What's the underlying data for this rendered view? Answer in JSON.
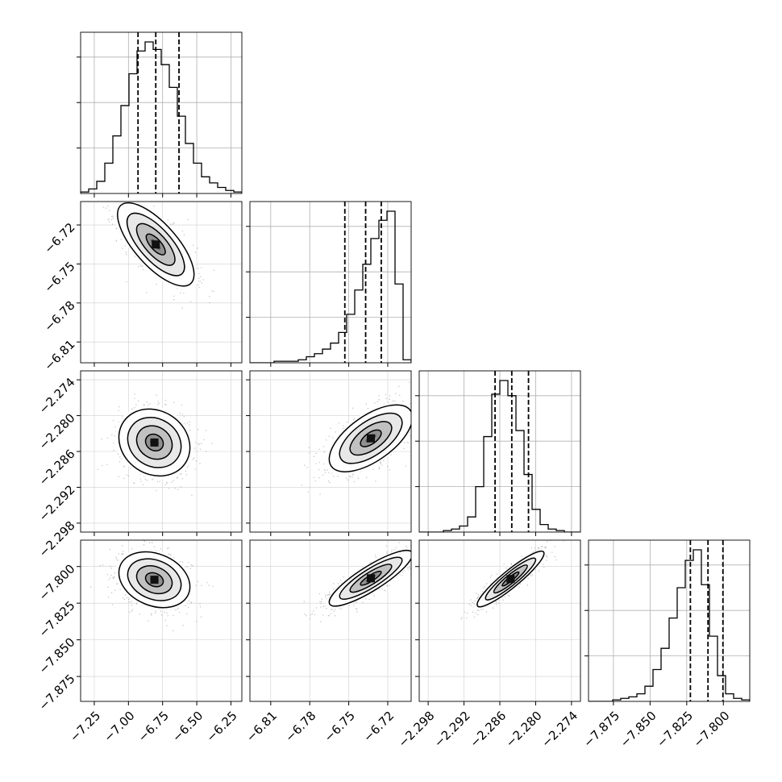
{
  "chart_data": {
    "type": "corner",
    "title": "",
    "parameters": [
      {
        "name": "",
        "axis_range": [
          -7.35,
          -6.17
        ],
        "x_ticks": [
          "-7.25",
          "-7.00",
          "-6.75",
          "-6.50",
          "-6.25"
        ],
        "quantiles": [
          -6.93,
          -6.8,
          -6.63
        ],
        "histogram": [
          0.01,
          0.03,
          0.08,
          0.2,
          0.38,
          0.58,
          0.79,
          0.94,
          1.0,
          0.95,
          0.85,
          0.7,
          0.51,
          0.33,
          0.2,
          0.11,
          0.07,
          0.04,
          0.02,
          0.01
        ]
      },
      {
        "name": "",
        "axis_range": [
          -6.826,
          -6.702
        ],
        "x_ticks": [
          "-6.81",
          "-6.78",
          "-6.75",
          "-6.72"
        ],
        "y_ticks": [
          "-6.72",
          "-6.75",
          "-6.78",
          "-6.81"
        ],
        "quantiles": [
          -6.753,
          -6.737,
          -6.725
        ],
        "histogram": [
          0.0,
          0.0,
          0.0,
          0.01,
          0.01,
          0.01,
          0.02,
          0.04,
          0.06,
          0.09,
          0.13,
          0.2,
          0.32,
          0.48,
          0.65,
          0.82,
          0.94,
          1.0,
          0.52,
          0.02
        ]
      },
      {
        "name": "",
        "axis_range": [
          -2.2995,
          -2.2725
        ],
        "x_ticks": [
          "-2.298",
          "-2.292",
          "-2.286",
          "-2.280",
          "-2.274"
        ],
        "y_ticks": [
          "-2.274",
          "-2.280",
          "-2.286",
          "-2.292",
          "-2.298"
        ],
        "quantiles": [
          -2.2868,
          -2.284,
          -2.2812
        ],
        "histogram": [
          0.0,
          0.0,
          0.0,
          0.01,
          0.02,
          0.04,
          0.1,
          0.3,
          0.63,
          0.91,
          1.0,
          0.9,
          0.67,
          0.38,
          0.15,
          0.05,
          0.02,
          0.01,
          0.0,
          0.0
        ]
      },
      {
        "name": "",
        "axis_range": [
          -7.892,
          -7.782
        ],
        "x_ticks": [
          "-7.875",
          "-7.850",
          "-7.825",
          "-7.800"
        ],
        "y_ticks": [
          "-7.800",
          "-7.825",
          "-7.850",
          "-7.875"
        ],
        "quantiles": [
          -7.8225,
          -7.8105,
          -7.8003
        ],
        "histogram": [
          0.0,
          0.0,
          0.0,
          0.01,
          0.02,
          0.03,
          0.05,
          0.1,
          0.21,
          0.35,
          0.55,
          0.75,
          0.93,
          1.0,
          0.77,
          0.43,
          0.17,
          0.05,
          0.02,
          0.01
        ]
      }
    ],
    "pairs": [
      {
        "row": 1,
        "col": 0,
        "mean": [
          -6.8,
          -6.735
        ],
        "std": [
          0.14,
          0.016
        ],
        "corr": -0.72
      },
      {
        "row": 2,
        "col": 0,
        "mean": [
          -6.81,
          -2.2845
        ],
        "std": [
          0.13,
          0.0028
        ],
        "corr": -0.15
      },
      {
        "row": 2,
        "col": 1,
        "mean": [
          -6.733,
          -2.2838
        ],
        "std": [
          0.016,
          0.0028
        ],
        "corr": 0.62
      },
      {
        "row": 3,
        "col": 0,
        "mean": [
          -6.81,
          -7.809
        ],
        "std": [
          0.13,
          0.0095
        ],
        "corr": -0.25
      },
      {
        "row": 3,
        "col": 1,
        "mean": [
          -6.733,
          -7.808
        ],
        "std": [
          0.016,
          0.0095
        ],
        "corr": 0.86
      },
      {
        "row": 3,
        "col": 2,
        "mean": [
          -2.2842,
          -7.8085
        ],
        "std": [
          0.0028,
          0.0095
        ],
        "corr": 0.92
      }
    ],
    "contour_levels": [
      0.5,
      1.0,
      1.5,
      2.0
    ],
    "quantile_levels": [
      0.16,
      0.5,
      0.84
    ],
    "grid": true,
    "legend": "none"
  }
}
